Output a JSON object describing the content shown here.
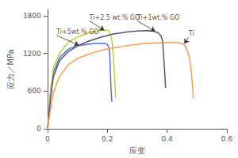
{
  "chart_data": {
    "type": "line",
    "xlabel": "应变",
    "ylabel": "应力／MPa",
    "xlim": [
      0.0,
      0.6
    ],
    "ylim": [
      0,
      1900
    ],
    "xticks": [
      0.0,
      0.2,
      0.4,
      0.6
    ],
    "yticks": [
      0,
      600,
      1200,
      1800
    ],
    "grid": false,
    "legend": false,
    "series": [
      {
        "x": [
          0,
          0.005,
          0.01,
          0.02,
          0.04,
          0.07,
          0.1,
          0.13,
          0.155,
          0.17,
          0.185,
          0.195,
          0.2,
          0.205,
          0.208,
          0.212,
          0.215
        ],
        "values": [
          0,
          200,
          550,
          900,
          1130,
          1270,
          1320,
          1345,
          1355,
          1360,
          1360,
          1355,
          1340,
          1300,
          1200,
          700,
          430
        ]
      },
      {
        "x": [
          0,
          0.005,
          0.01,
          0.02,
          0.04,
          0.07,
          0.1,
          0.14,
          0.17,
          0.19,
          0.198,
          0.205,
          0.21,
          0.215,
          0.22,
          0.225,
          0.228
        ],
        "values": [
          0,
          220,
          600,
          980,
          1200,
          1380,
          1460,
          1530,
          1560,
          1570,
          1575,
          1560,
          1510,
          1420,
          1200,
          800,
          490
        ]
      },
      {
        "x": [
          0,
          0.005,
          0.01,
          0.02,
          0.04,
          0.07,
          0.1,
          0.14,
          0.18,
          0.22,
          0.27,
          0.31,
          0.335,
          0.355,
          0.37,
          0.38,
          0.385,
          0.388,
          0.392,
          0.395
        ],
        "values": [
          0,
          180,
          480,
          830,
          1080,
          1230,
          1320,
          1400,
          1460,
          1510,
          1545,
          1560,
          1565,
          1555,
          1530,
          1480,
          1390,
          1200,
          900,
          650
        ]
      },
      {
        "x": [
          0,
          0.005,
          0.01,
          0.02,
          0.04,
          0.07,
          0.1,
          0.15,
          0.2,
          0.26,
          0.32,
          0.38,
          0.41,
          0.43,
          0.44,
          0.455,
          0.46,
          0.465,
          0.47,
          0.475,
          0.48,
          0.485,
          0.488
        ],
        "values": [
          0,
          150,
          300,
          580,
          830,
          1020,
          1120,
          1210,
          1270,
          1320,
          1355,
          1370,
          1375,
          1375,
          1370,
          1350,
          1320,
          1275,
          1210,
          1130,
          950,
          700,
          480
        ]
      }
    ],
    "annotations": [
      {
        "text": "Ti+5wt.% GO",
        "xy": [
          0.105,
          1330
        ],
        "xytext": [
          0.03,
          1490
        ]
      },
      {
        "text": "Ti+2.5 wt.% GO",
        "xy": [
          0.19,
          1570
        ],
        "xytext": [
          0.14,
          1720
        ]
      },
      {
        "text": "Ti+1wt.% GO",
        "xy": [
          0.36,
          1555
        ],
        "xytext": [
          0.3,
          1720
        ]
      },
      {
        "text": "Ti",
        "xy": [
          0.458,
          1355
        ],
        "xytext": [
          0.472,
          1460
        ]
      }
    ]
  }
}
